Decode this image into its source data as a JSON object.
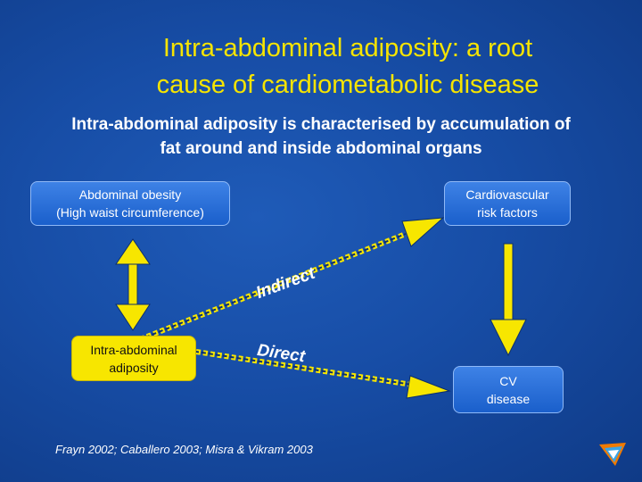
{
  "slide": {
    "title_line1": "Intra-abdominal adiposity: a root",
    "title_line2": "cause of cardiometabolic disease",
    "subtitle_line1": "Intra-abdominal adiposity is characterised by accumulation of",
    "subtitle_line2": "fat around and inside abdominal organs"
  },
  "diagram": {
    "abdominal_obesity": {
      "line1": "Abdominal obesity",
      "line2": "(High waist circumference)"
    },
    "cv_risk_factors": {
      "line1": "Cardiovascular",
      "line2": "risk factors"
    },
    "intra_abdominal": {
      "line1": "Intra-abdominal",
      "line2": "adiposity"
    },
    "cv_disease": {
      "line1": "CV",
      "line2": "disease"
    },
    "indirect_label": "Indirect",
    "direct_label": "Direct"
  },
  "citation": "Frayn 2002; Caballero 2003; Misra & Vikram 2003",
  "colors": {
    "title": "#f6e400",
    "arrow": "#f7e600",
    "background": "#174da6"
  },
  "icons": {
    "corner_logo": "logo-icon"
  }
}
